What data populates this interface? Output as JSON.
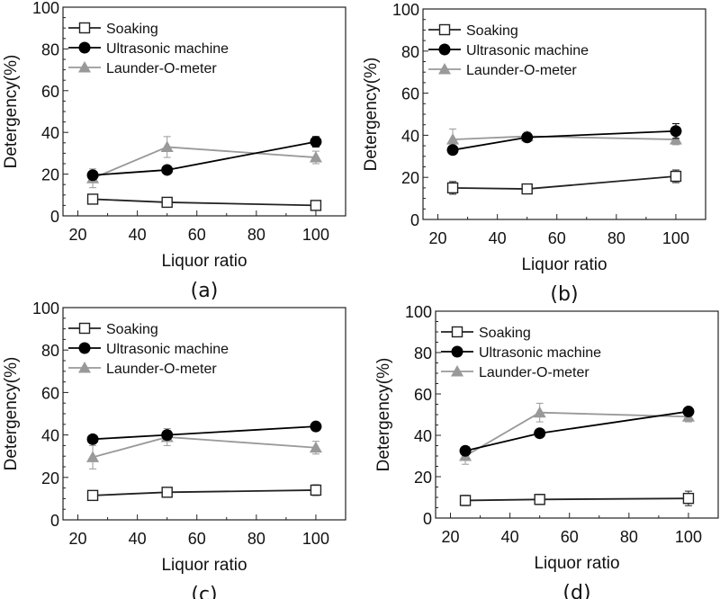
{
  "chart_data": [
    {
      "type": "line",
      "panel_label": "(a)",
      "xlabel": "Liquor ratio",
      "ylabel": "Detergency(%)",
      "xlim": [
        15,
        110
      ],
      "ylim": [
        0,
        100
      ],
      "xticks": [
        20,
        40,
        60,
        80,
        100
      ],
      "yticks": [
        0,
        20,
        40,
        60,
        80,
        100
      ],
      "legend_position": "top-left",
      "x": [
        25,
        50,
        100
      ],
      "series": [
        {
          "name": "Soaking",
          "marker": "open-square",
          "color": "#222222",
          "values": [
            8,
            6.5,
            5
          ],
          "errors": [
            1,
            1,
            1.5
          ]
        },
        {
          "name": "Ultrasonic machine",
          "marker": "filled-circle",
          "color": "#000000",
          "values": [
            19.5,
            22,
            35.5
          ],
          "errors": [
            1.5,
            1,
            2.5
          ]
        },
        {
          "name": "Launder-O-meter",
          "marker": "filled-triangle",
          "color": "#999999",
          "values": [
            18,
            33,
            28
          ],
          "errors": [
            4.5,
            5,
            3
          ]
        }
      ]
    },
    {
      "type": "line",
      "panel_label": "(b)",
      "xlabel": "Liquor ratio",
      "ylabel": "Detergency(%)",
      "xlim": [
        15,
        110
      ],
      "ylim": [
        0,
        100
      ],
      "xticks": [
        20,
        40,
        60,
        80,
        100
      ],
      "yticks": [
        0,
        20,
        40,
        60,
        80,
        100
      ],
      "legend_position": "top-left",
      "x": [
        25,
        50,
        100
      ],
      "series": [
        {
          "name": "Soaking",
          "marker": "open-square",
          "color": "#222222",
          "values": [
            15,
            14.5,
            20.5
          ],
          "errors": [
            3,
            1,
            3
          ]
        },
        {
          "name": "Ultrasonic machine",
          "marker": "filled-circle",
          "color": "#000000",
          "values": [
            33,
            39,
            42
          ],
          "errors": [
            1.5,
            1.5,
            3.5
          ]
        },
        {
          "name": "Launder-O-meter",
          "marker": "filled-triangle",
          "color": "#999999",
          "values": [
            38,
            39.5,
            38
          ],
          "errors": [
            5,
            2,
            2.5
          ]
        }
      ]
    },
    {
      "type": "line",
      "panel_label": "(c)",
      "xlabel": "Liquor ratio",
      "ylabel": "Detergency(%)",
      "xlim": [
        15,
        110
      ],
      "ylim": [
        0,
        100
      ],
      "xticks": [
        20,
        40,
        60,
        80,
        100
      ],
      "yticks": [
        0,
        20,
        40,
        60,
        80,
        100
      ],
      "legend_position": "top-left",
      "x": [
        25,
        50,
        100
      ],
      "series": [
        {
          "name": "Soaking",
          "marker": "open-square",
          "color": "#222222",
          "values": [
            11.5,
            13,
            14
          ],
          "errors": [
            1.5,
            1,
            2.5
          ]
        },
        {
          "name": "Ultrasonic machine",
          "marker": "filled-circle",
          "color": "#000000",
          "values": [
            38,
            40,
            44
          ],
          "errors": [
            1.5,
            2,
            1.5
          ]
        },
        {
          "name": "Launder-O-meter",
          "marker": "filled-triangle",
          "color": "#999999",
          "values": [
            29.5,
            39,
            34
          ],
          "errors": [
            5.5,
            4,
            3
          ]
        }
      ]
    },
    {
      "type": "line",
      "panel_label": "(d)",
      "xlabel": "Liquor ratio",
      "ylabel": "Detergency(%)",
      "xlim": [
        15,
        110
      ],
      "ylim": [
        0,
        100
      ],
      "xticks": [
        20,
        40,
        60,
        80,
        100
      ],
      "yticks": [
        0,
        20,
        40,
        60,
        80,
        100
      ],
      "legend_position": "top-left",
      "x": [
        25,
        50,
        100
      ],
      "series": [
        {
          "name": "Soaking",
          "marker": "open-square",
          "color": "#222222",
          "values": [
            8.5,
            9,
            9.5
          ],
          "errors": [
            2.5,
            2.5,
            3.5
          ]
        },
        {
          "name": "Ultrasonic machine",
          "marker": "filled-circle",
          "color": "#000000",
          "values": [
            32.5,
            41,
            51.5
          ],
          "errors": [
            2,
            1,
            1.5
          ]
        },
        {
          "name": "Launder-O-meter",
          "marker": "filled-triangle",
          "color": "#999999",
          "values": [
            30,
            51,
            49
          ],
          "errors": [
            4,
            4.5,
            2.5
          ]
        }
      ]
    }
  ]
}
